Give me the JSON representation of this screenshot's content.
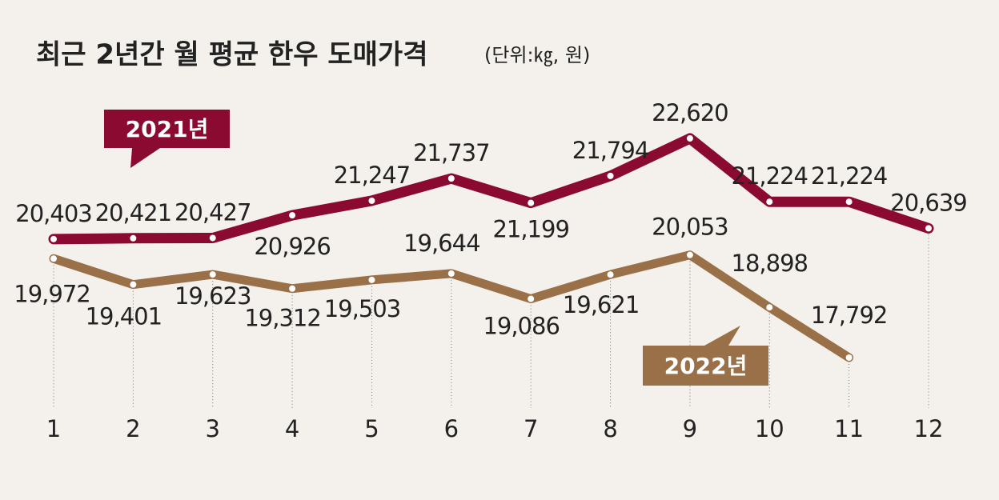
{
  "chart_data": {
    "type": "line",
    "title": "최근 2년간 월 평균 한우 도매가격",
    "subtitle": "(단위:㎏, 원)",
    "categories": [
      "1",
      "2",
      "3",
      "4",
      "5",
      "6",
      "7",
      "8",
      "9",
      "10",
      "11",
      "12"
    ],
    "series": [
      {
        "name": "2021년",
        "color": "#8b0a32",
        "values": [
          20403,
          20421,
          20427,
          20926,
          21247,
          21737,
          21199,
          21794,
          22620,
          21224,
          21224,
          20639
        ],
        "value_labels": [
          "20,403",
          "20,421",
          "20,427",
          "20,926",
          "21,247",
          "21,737",
          "21,199",
          "21,794",
          "22,620",
          "21,224",
          "21,224",
          "20,639"
        ]
      },
      {
        "name": "2022년",
        "color": "#9a7048",
        "values": [
          19972,
          19401,
          19623,
          19312,
          19503,
          19644,
          19086,
          19621,
          20053,
          18898,
          17792,
          null
        ],
        "value_labels": [
          "19,972",
          "19,401",
          "19,623",
          "19,312",
          "19,503",
          "19,644",
          "19,086",
          "19,621",
          "20,053",
          "18,898",
          "17,792",
          null
        ]
      }
    ]
  }
}
